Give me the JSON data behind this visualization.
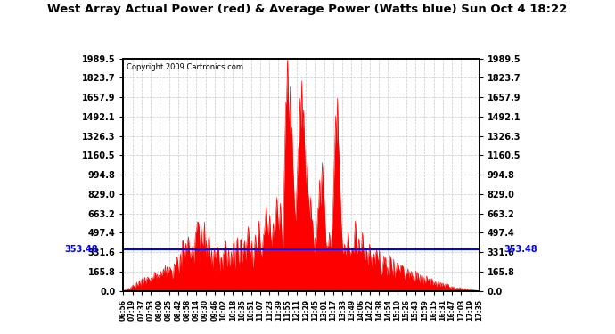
{
  "title": "West Array Actual Power (red) & Average Power (Watts blue) Sun Oct 4 18:22",
  "copyright": "Copyright 2009 Cartronics.com",
  "ymax": 1989.5,
  "ymin": 0.0,
  "yticks": [
    0.0,
    165.8,
    331.6,
    497.4,
    663.2,
    829.0,
    994.8,
    1160.5,
    1326.3,
    1492.1,
    1657.9,
    1823.7,
    1989.5
  ],
  "average_power": 353.48,
  "avg_label": "353.48",
  "background_color": "#ffffff",
  "fill_color": "#ff0000",
  "line_color": "#0000ff",
  "x_labels": [
    "06:56",
    "07:19",
    "07:37",
    "07:53",
    "08:09",
    "08:25",
    "08:42",
    "08:58",
    "09:14",
    "09:30",
    "09:46",
    "10:02",
    "10:18",
    "10:35",
    "10:51",
    "11:07",
    "11:23",
    "11:39",
    "11:55",
    "12:11",
    "12:29",
    "12:45",
    "13:01",
    "13:17",
    "13:33",
    "13:49",
    "14:06",
    "14:22",
    "14:38",
    "14:54",
    "15:10",
    "15:26",
    "15:43",
    "15:59",
    "16:15",
    "16:31",
    "16:47",
    "17:03",
    "17:19",
    "17:35"
  ],
  "num_points": 400
}
